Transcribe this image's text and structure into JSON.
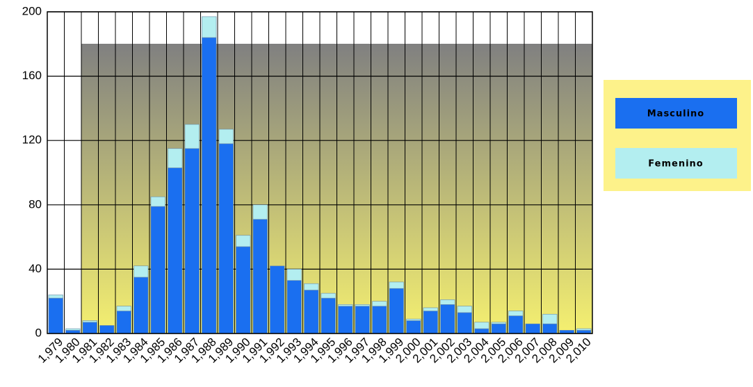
{
  "chart_data": {
    "type": "stacked_bar",
    "categories": [
      "1,979",
      "1,980",
      "1,981",
      "1,982",
      "1,983",
      "1,984",
      "1,985",
      "1,986",
      "1,987",
      "1,988",
      "1,989",
      "1,990",
      "1,991",
      "1,992",
      "1,993",
      "1,994",
      "1,995",
      "1,996",
      "1,997",
      "1,998",
      "1,999",
      "2,000",
      "2,001",
      "2,002",
      "2,003",
      "2,004",
      "2,005",
      "2,006",
      "2,007",
      "2,008",
      "2,009",
      "2,010"
    ],
    "series": [
      {
        "name": "Masculino",
        "color": "#1a6ff0",
        "values": [
          22,
          2,
          7,
          5,
          14,
          35,
          79,
          103,
          115,
          184,
          118,
          54,
          71,
          42,
          33,
          27,
          22,
          17,
          17,
          17,
          28,
          8,
          14,
          18,
          13,
          3,
          6,
          11,
          6,
          6,
          2,
          2
        ]
      },
      {
        "name": "Femenino",
        "color": "#b3eef0",
        "values": [
          2,
          1,
          1,
          0,
          3,
          7,
          6,
          12,
          15,
          13,
          9,
          7,
          9,
          0,
          7,
          4,
          3,
          1,
          1,
          3,
          4,
          1,
          2,
          3,
          4,
          4,
          1,
          3,
          0,
          6,
          0,
          1
        ]
      }
    ],
    "ylim": [
      0,
      200
    ],
    "yticks": [
      0,
      40,
      80,
      120,
      160,
      200
    ],
    "grid": true,
    "legend": "right"
  }
}
